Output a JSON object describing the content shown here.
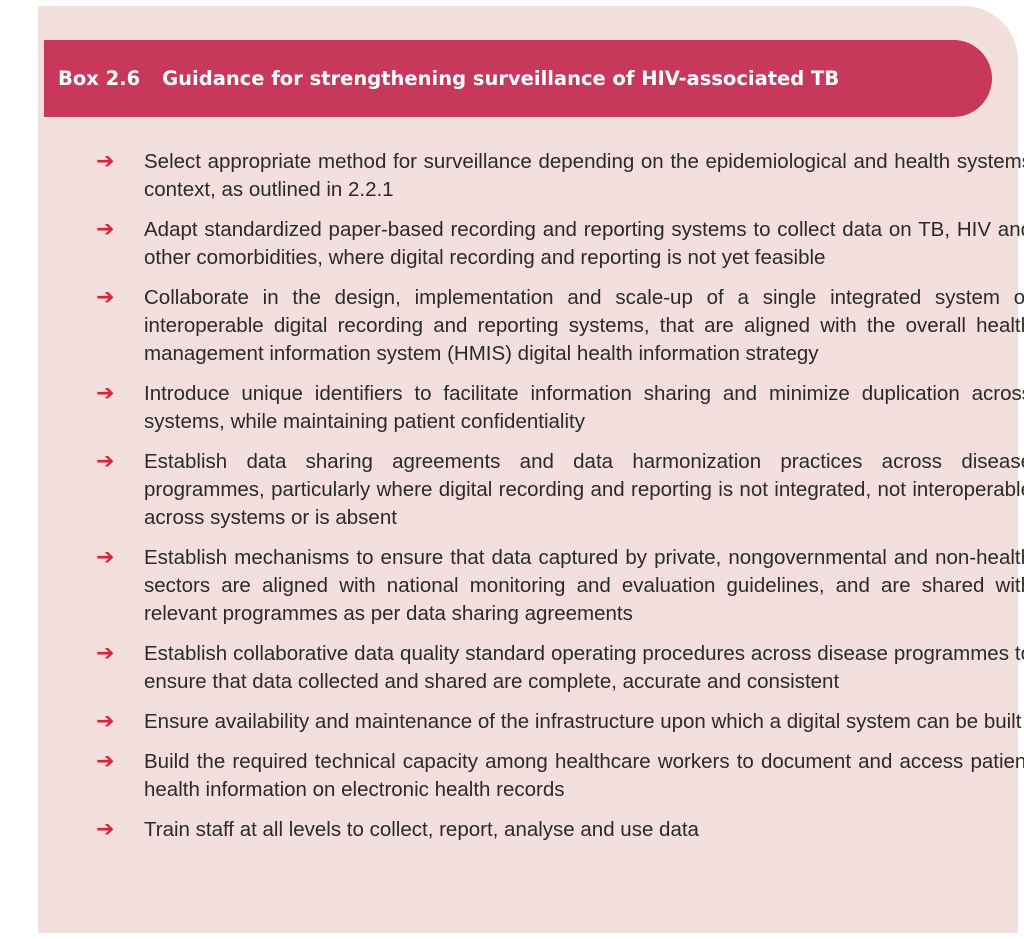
{
  "box": {
    "number": "Box 2.6",
    "title": "Guidance for strengthening surveillance of HIV-associated TB",
    "arrow_color": "#e0203a",
    "header_color": "#c8385a",
    "background_color": "#f4dfdf",
    "items": [
      "Select appropriate method for surveillance depending on the epidemiological and health systems context, as outlined in 2.2.1",
      "Adapt standardized paper-based recording and reporting systems to collect data on TB, HIV and other comorbidities, where digital recording and reporting is not yet feasible",
      "Collaborate in the design, implementation and scale-up of a single integrated system or interoperable digital recording and reporting systems, that are aligned with the overall health management information system (HMIS) digital health information strategy",
      "Introduce unique identifiers to facilitate information sharing and minimize duplication across systems, while maintaining patient confidentiality",
      "Establish data sharing agreements and data harmonization practices across disease programmes, particularly where digital recording and reporting is not integrated, not interoperable across systems or is absent",
      "Establish mechanisms to ensure that data captured by private, nongovernmental and non-health sectors are aligned with national monitoring and evaluation guidelines, and are shared with relevant programmes as per data sharing agreements",
      "Establish collaborative data quality standard operating procedures across disease programmes to ensure that data collected and shared are complete, accurate and consistent",
      "Ensure availability and maintenance of the infrastructure upon which a digital system can be built",
      "Build the required technical capacity among healthcare workers to document and access patient health information on electronic health records",
      "Train staff at all levels to collect, report, analyse and use data"
    ]
  }
}
